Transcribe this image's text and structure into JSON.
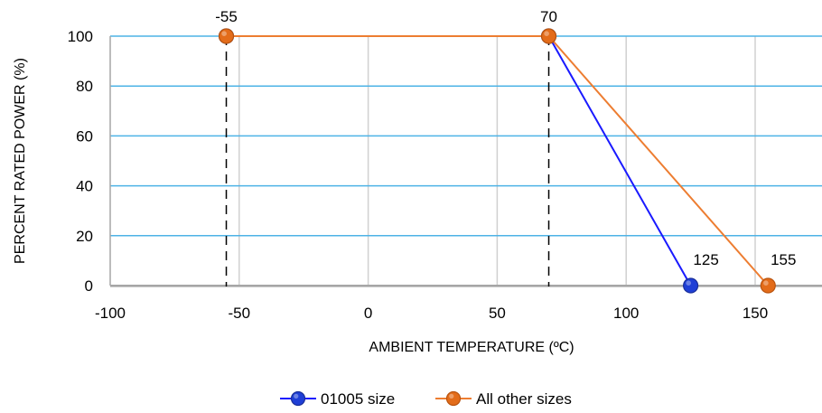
{
  "chart_data": {
    "type": "line",
    "xlabel": "AMBIENT TEMPERATURE (ºC)",
    "ylabel": "PERCENT RATED POWER (%)",
    "xlim": [
      -100,
      175
    ],
    "ylim": [
      0,
      100
    ],
    "xticks": [
      -100,
      -50,
      0,
      50,
      100,
      150
    ],
    "yticks": [
      0,
      20,
      40,
      60,
      80,
      100
    ],
    "grid": true,
    "legend_position": "bottom",
    "series": [
      {
        "name": "01005 size",
        "color": "#1a1aff",
        "marker_color": "#1f3fd6",
        "x": [
          -55,
          70,
          125
        ],
        "y": [
          100,
          100,
          0
        ]
      },
      {
        "name": "All other sizes",
        "color": "#ed7d31",
        "marker_color": "#e36c1a",
        "x": [
          -55,
          70,
          155
        ],
        "y": [
          100,
          100,
          0
        ]
      }
    ],
    "vertical_dashed_lines": [
      -55,
      70
    ],
    "annotations": [
      {
        "text": "-55",
        "x": -55,
        "y": 100
      },
      {
        "text": "70",
        "x": 70,
        "y": 100
      },
      {
        "text": "125",
        "x": 125,
        "y": 0
      },
      {
        "text": "155",
        "x": 155,
        "y": 0
      }
    ]
  }
}
